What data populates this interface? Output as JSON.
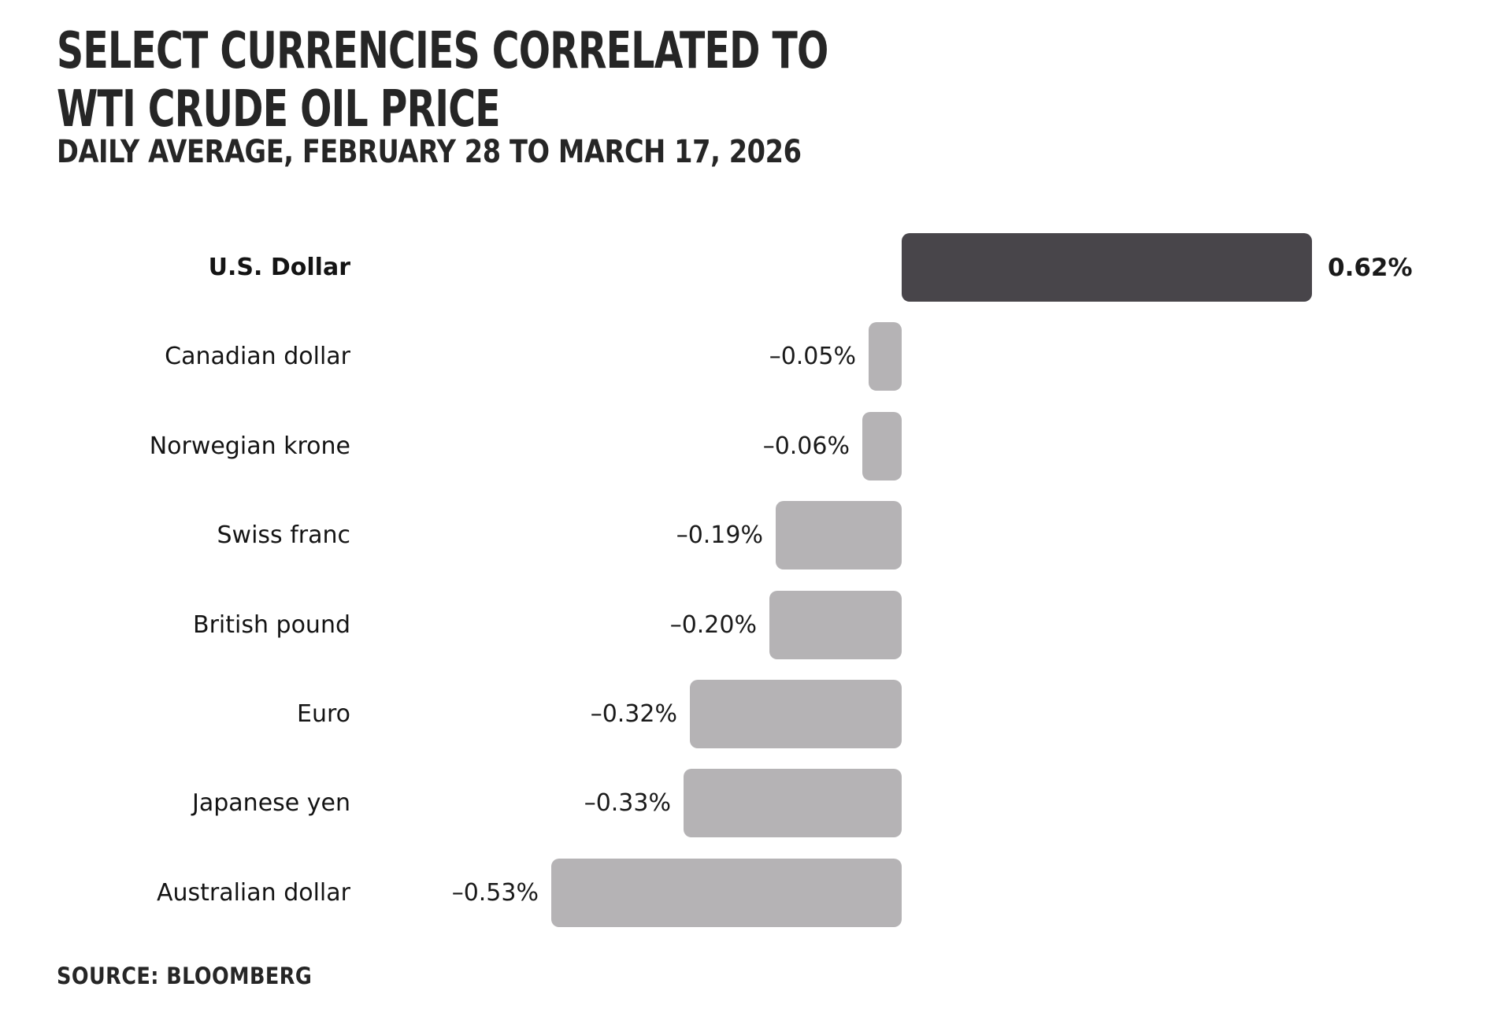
{
  "title": {
    "line1": "SELECT CURRENCIES CORRELATED TO",
    "line2": "WTI CRUDE OIL PRICE"
  },
  "subtitle": "DAILY AVERAGE, FEBRUARY 28 TO MARCH 17, 2026",
  "source": "SOURCE: BLOOMBERG",
  "colors": {
    "background": "#ffffff",
    "bar_positive": "#48454a",
    "bar_negative": "#b5b3b5",
    "title_text": "#262626",
    "label_text": "#141414"
  },
  "chart_data": {
    "type": "bar",
    "orientation": "horizontal",
    "title": "SELECT CURRENCIES CORRELATED TO WTI CRUDE OIL PRICE",
    "subtitle": "DAILY AVERAGE, FEBRUARY 28 TO MARCH 17, 2026",
    "source": "SOURCE: BLOOMBERG",
    "xlabel": "",
    "ylabel": "",
    "unit": "%",
    "xlim": [
      -0.6,
      0.7
    ],
    "grid": false,
    "legend": false,
    "categories": [
      "U.S. Dollar",
      "Canadian dollar",
      "Norwegian krone",
      "Swiss franc",
      "British pound",
      "Euro",
      "Japanese yen",
      "Australian dollar"
    ],
    "values": [
      0.62,
      -0.05,
      -0.06,
      -0.19,
      -0.2,
      -0.32,
      -0.33,
      -0.53
    ],
    "value_labels": [
      "0.62%",
      "–0.05%",
      "–0.06%",
      "–0.19%",
      "–0.20%",
      "–0.32%",
      "–0.33%",
      "–0.53%"
    ],
    "emphasized_category": "U.S. Dollar"
  }
}
